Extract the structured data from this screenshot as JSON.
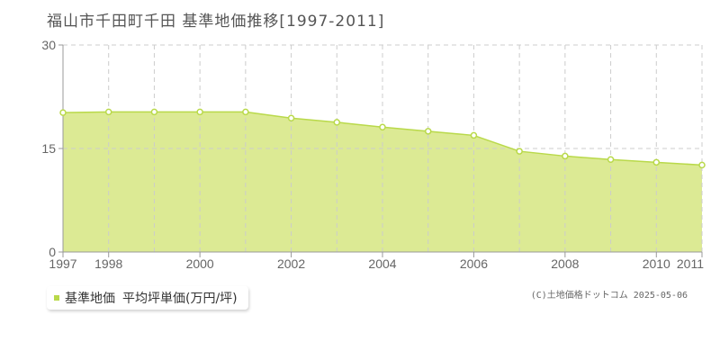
{
  "title": "福山市千田町千田 基準地価推移[1997-2011]",
  "legend": {
    "series_label": "基準地価",
    "unit_label": "平均坪単価(万円/坪)"
  },
  "copyright": "(C)土地価格ドットコム 2025-05-06",
  "colors": {
    "fill": "#dcea94",
    "line": "#b9d94a",
    "grid": "#cccccc",
    "axis": "#999999"
  },
  "chart_data": {
    "type": "area",
    "x": [
      1997,
      1998,
      1999,
      2000,
      2001,
      2002,
      2003,
      2004,
      2005,
      2006,
      2007,
      2008,
      2009,
      2010,
      2011
    ],
    "series": [
      {
        "name": "基準地価",
        "values": [
          20.2,
          20.3,
          20.3,
          20.3,
          20.3,
          19.4,
          18.8,
          18.1,
          17.5,
          16.9,
          14.6,
          13.9,
          13.4,
          13.0,
          12.6
        ]
      }
    ],
    "x_tick_labels": [
      "1997",
      "1998",
      "2000",
      "2002",
      "2004",
      "2006",
      "2008",
      "2010",
      "2011"
    ],
    "y_tick_labels": [
      "0",
      "15",
      "30"
    ],
    "xlim": [
      1997,
      2011
    ],
    "ylim": [
      0,
      30
    ],
    "grid": true
  }
}
